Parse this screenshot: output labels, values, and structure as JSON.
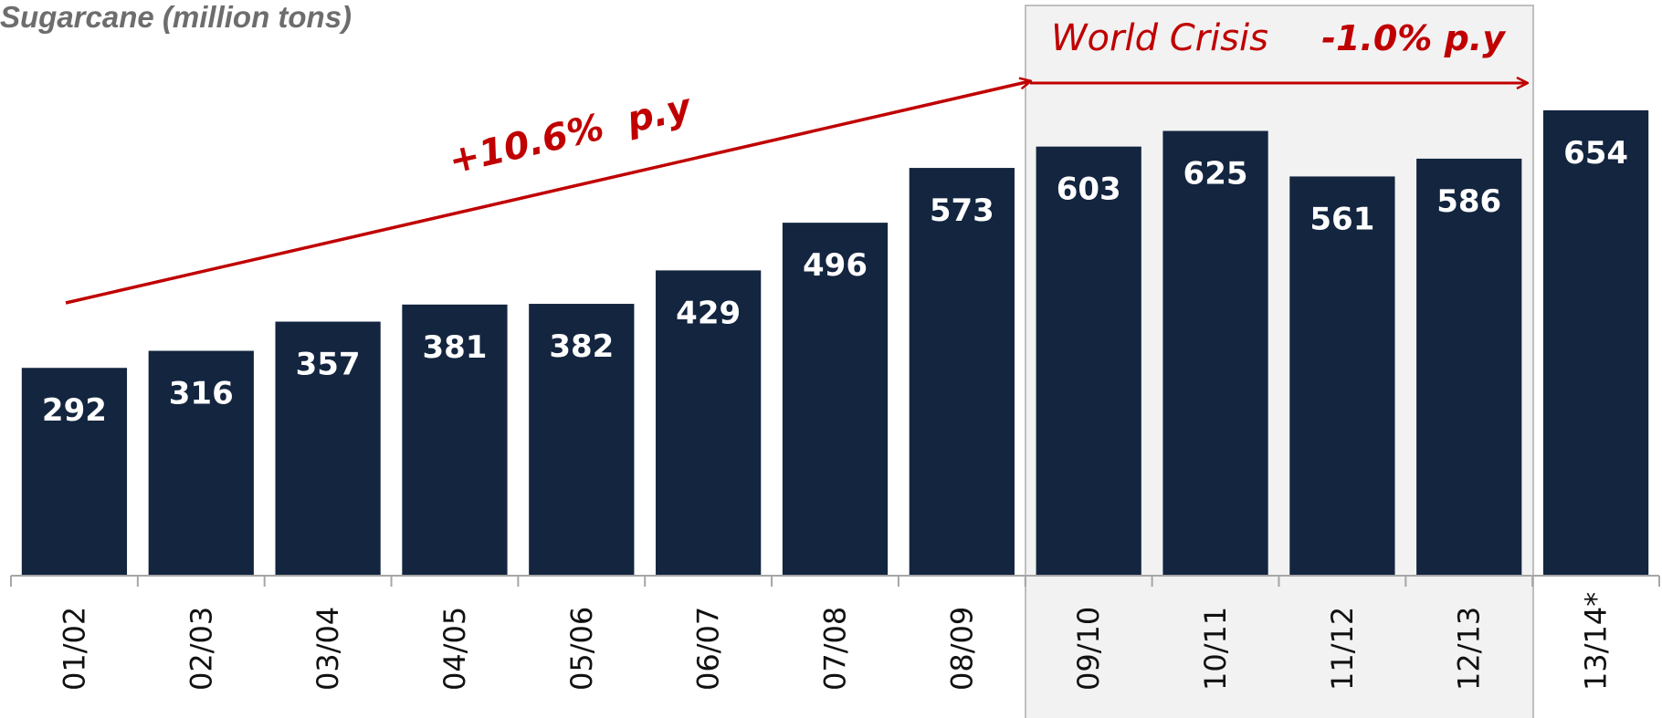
{
  "chart_data": {
    "type": "bar",
    "title": "Sugarcane (million tons)",
    "categories": [
      "01/02",
      "02/03",
      "03/04",
      "04/05",
      "05/06",
      "06/07",
      "07/08",
      "08/09",
      "09/10",
      "10/11",
      "11/12",
      "12/13",
      "13/14*"
    ],
    "values": [
      292,
      316,
      357,
      381,
      382,
      429,
      496,
      573,
      603,
      625,
      561,
      586,
      654
    ],
    "color": "#13253f",
    "annotations": [
      "+10.6%  p.y",
      "World Crisis",
      "-1.0% p.y"
    ]
  }
}
